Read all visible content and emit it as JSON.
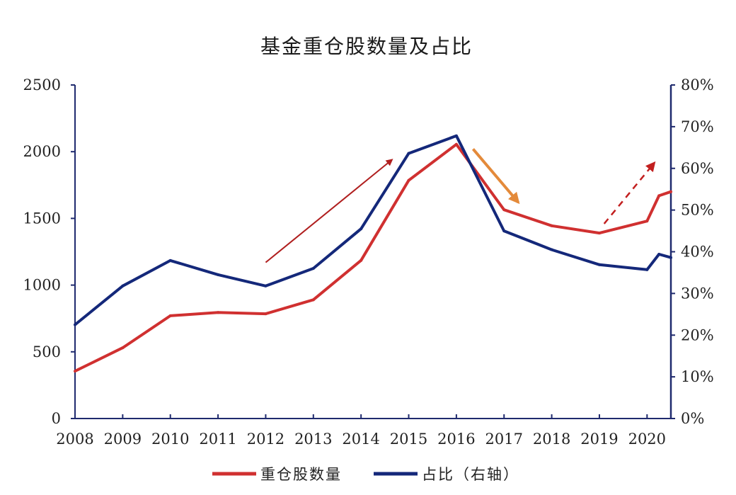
{
  "chart_data": {
    "type": "line",
    "title": "基金重仓股数量及占比",
    "x": [
      "2008",
      "2009",
      "2010",
      "2011",
      "2012",
      "2013",
      "2014",
      "2015",
      "2016",
      "2017",
      "2018",
      "2019",
      "2020"
    ],
    "x_values": [
      2008,
      2009,
      2010,
      2011,
      2012,
      2013,
      2014,
      2015,
      2016,
      2017,
      2018,
      2019,
      2020,
      2020.25,
      2020.5
    ],
    "xlim": [
      2008,
      2020.5
    ],
    "y_left": {
      "lim": [
        0,
        2500
      ],
      "ticks": [
        "0",
        "500",
        "1000",
        "1500",
        "2000",
        "2500"
      ]
    },
    "y_right": {
      "lim": [
        0,
        80
      ],
      "ticks": [
        "0%",
        "10%",
        "20%",
        "30%",
        "40%",
        "50%",
        "60%",
        "70%",
        "80%"
      ]
    },
    "series": [
      {
        "name": "重仓股数量",
        "axis": "left",
        "color": "#d03030",
        "values": [
          355,
          530,
          770,
          795,
          785,
          890,
          1185,
          1785,
          2055,
          1565,
          1445,
          1390,
          1480,
          1670,
          1700
        ]
      },
      {
        "name": "占比（右轴）",
        "axis": "right",
        "color": "#14287a",
        "values": [
          22.5,
          31.8,
          37.9,
          34.5,
          31.8,
          36.0,
          45.5,
          63.6,
          67.8,
          45.0,
          40.5,
          36.9,
          35.7,
          39.4,
          38.6
        ]
      }
    ],
    "annotations": [
      {
        "type": "arrow",
        "style": "solid",
        "color": "#b01f1f",
        "from": [
          2012,
          1170
        ],
        "to": [
          2014.65,
          1940
        ]
      },
      {
        "type": "arrow",
        "style": "solid",
        "color": "#e48a3a",
        "from": [
          2016.35,
          2020
        ],
        "to": [
          2017.3,
          1620
        ]
      },
      {
        "type": "arrow",
        "style": "dashed",
        "color": "#c21f1f",
        "from": [
          2019.1,
          1460
        ],
        "to": [
          2020.15,
          1915
        ]
      }
    ],
    "legend_position": "bottom",
    "grid": false
  }
}
